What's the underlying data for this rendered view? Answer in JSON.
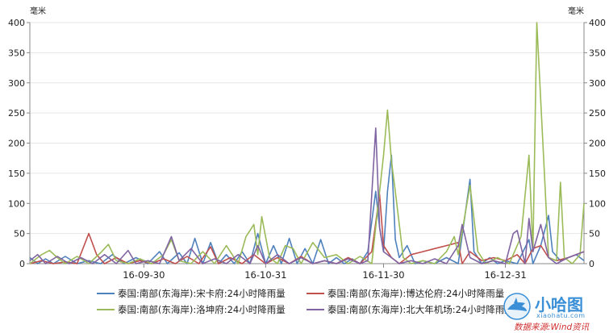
{
  "chart_data": {
    "type": "line",
    "y_unit_left": "毫米",
    "y_unit_right": "毫米",
    "ylim": [
      0,
      400
    ],
    "yticks": [
      0,
      50,
      100,
      150,
      200,
      250,
      300,
      350,
      400
    ],
    "xlim": [
      "2016-09-01",
      "2017-01-20"
    ],
    "xticks": [
      {
        "date": "2016-09-30",
        "label": "16-09-30"
      },
      {
        "date": "2016-10-31",
        "label": "16-10-31"
      },
      {
        "date": "2016-11-30",
        "label": "16-11-30"
      },
      {
        "date": "2016-12-31",
        "label": "16-12-31"
      }
    ],
    "grid": "horizontal",
    "legend_position": "bottom",
    "series": [
      {
        "name": "泰国:南部(东海岸):宋卡府:24小时降雨量",
        "color": "#4f81bd",
        "points": [
          [
            "2016-09-01",
            10
          ],
          [
            "2016-09-03",
            0
          ],
          [
            "2016-09-05",
            8
          ],
          [
            "2016-09-07",
            0
          ],
          [
            "2016-09-10",
            12
          ],
          [
            "2016-09-13",
            0
          ],
          [
            "2016-09-16",
            5
          ],
          [
            "2016-09-19",
            0
          ],
          [
            "2016-09-22",
            15
          ],
          [
            "2016-09-25",
            0
          ],
          [
            "2016-09-28",
            10
          ],
          [
            "2016-10-01",
            0
          ],
          [
            "2016-10-04",
            20
          ],
          [
            "2016-10-06",
            0
          ],
          [
            "2016-10-09",
            18
          ],
          [
            "2016-10-11",
            0
          ],
          [
            "2016-10-13",
            42
          ],
          [
            "2016-10-15",
            0
          ],
          [
            "2016-10-17",
            35
          ],
          [
            "2016-10-19",
            0
          ],
          [
            "2016-10-21",
            15
          ],
          [
            "2016-10-23",
            0
          ],
          [
            "2016-10-25",
            20
          ],
          [
            "2016-10-27",
            0
          ],
          [
            "2016-10-29",
            50
          ],
          [
            "2016-10-31",
            0
          ],
          [
            "2016-11-02",
            30
          ],
          [
            "2016-11-04",
            0
          ],
          [
            "2016-11-06",
            42
          ],
          [
            "2016-11-08",
            0
          ],
          [
            "2016-11-10",
            25
          ],
          [
            "2016-11-12",
            0
          ],
          [
            "2016-11-14",
            40
          ],
          [
            "2016-11-16",
            0
          ],
          [
            "2016-11-18",
            10
          ],
          [
            "2016-11-20",
            0
          ],
          [
            "2016-11-22",
            8
          ],
          [
            "2016-11-24",
            0
          ],
          [
            "2016-11-26",
            20
          ],
          [
            "2016-11-28",
            120
          ],
          [
            "2016-11-29",
            60
          ],
          [
            "2016-11-30",
            20
          ],
          [
            "2016-12-01",
            120
          ],
          [
            "2016-12-02",
            180
          ],
          [
            "2016-12-03",
            40
          ],
          [
            "2016-12-04",
            10
          ],
          [
            "2016-12-06",
            30
          ],
          [
            "2016-12-08",
            0
          ],
          [
            "2016-12-10",
            5
          ],
          [
            "2016-12-13",
            0
          ],
          [
            "2016-12-16",
            10
          ],
          [
            "2016-12-19",
            0
          ],
          [
            "2016-12-22",
            140
          ],
          [
            "2016-12-23",
            20
          ],
          [
            "2016-12-25",
            0
          ],
          [
            "2016-12-27",
            10
          ],
          [
            "2016-12-29",
            0
          ],
          [
            "2016-12-31",
            5
          ],
          [
            "2017-01-03",
            0
          ],
          [
            "2017-01-06",
            40
          ],
          [
            "2017-01-07",
            0
          ],
          [
            "2017-01-09",
            30
          ],
          [
            "2017-01-11",
            80
          ],
          [
            "2017-01-12",
            20
          ],
          [
            "2017-01-14",
            5
          ],
          [
            "2017-01-16",
            10
          ],
          [
            "2017-01-18",
            15
          ],
          [
            "2017-01-20",
            5
          ]
        ]
      },
      {
        "name": "泰国:南部(东海岸):博达伦府:24小时降雨量",
        "color": "#c0504d",
        "points": [
          [
            "2016-09-01",
            0
          ],
          [
            "2016-09-04",
            5
          ],
          [
            "2016-09-07",
            0
          ],
          [
            "2016-09-10",
            3
          ],
          [
            "2016-09-13",
            0
          ],
          [
            "2016-09-16",
            50
          ],
          [
            "2016-09-18",
            15
          ],
          [
            "2016-09-20",
            0
          ],
          [
            "2016-09-23",
            10
          ],
          [
            "2016-09-26",
            0
          ],
          [
            "2016-09-29",
            5
          ],
          [
            "2016-10-02",
            0
          ],
          [
            "2016-10-05",
            8
          ],
          [
            "2016-10-08",
            0
          ],
          [
            "2016-10-11",
            12
          ],
          [
            "2016-10-14",
            0
          ],
          [
            "2016-10-17",
            28
          ],
          [
            "2016-10-19",
            0
          ],
          [
            "2016-10-22",
            10
          ],
          [
            "2016-10-25",
            0
          ],
          [
            "2016-10-28",
            15
          ],
          [
            "2016-10-31",
            0
          ],
          [
            "2016-11-03",
            10
          ],
          [
            "2016-11-06",
            0
          ],
          [
            "2016-11-09",
            12
          ],
          [
            "2016-11-12",
            0
          ],
          [
            "2016-11-15",
            5
          ],
          [
            "2016-11-18",
            0
          ],
          [
            "2016-11-21",
            10
          ],
          [
            "2016-11-24",
            0
          ],
          [
            "2016-11-27",
            20
          ],
          [
            "2016-11-29",
            115
          ],
          [
            "2016-11-30",
            30
          ],
          [
            "2016-12-02",
            10
          ],
          [
            "2016-12-04",
            0
          ],
          [
            "2016-12-07",
            15
          ],
          [
            "2016-12-10",
            20
          ],
          [
            "2016-12-13",
            25
          ],
          [
            "2016-12-16",
            30
          ],
          [
            "2016-12-19",
            35
          ],
          [
            "2016-12-20",
            0
          ],
          [
            "2016-12-22",
            20
          ],
          [
            "2016-12-25",
            5
          ],
          [
            "2016-12-28",
            10
          ],
          [
            "2016-12-31",
            5
          ],
          [
            "2017-01-03",
            15
          ],
          [
            "2017-01-05",
            0
          ],
          [
            "2017-01-07",
            25
          ],
          [
            "2017-01-09",
            30
          ],
          [
            "2017-01-11",
            10
          ],
          [
            "2017-01-13",
            5
          ],
          [
            "2017-01-16",
            10
          ],
          [
            "2017-01-18",
            15
          ],
          [
            "2017-01-20",
            20
          ]
        ]
      },
      {
        "name": "泰国:南部(东海岸):洛坤府:24小时降雨量",
        "color": "#9bbb59",
        "points": [
          [
            "2016-09-01",
            0
          ],
          [
            "2016-09-04",
            15
          ],
          [
            "2016-09-06",
            22
          ],
          [
            "2016-09-08",
            10
          ],
          [
            "2016-09-10",
            0
          ],
          [
            "2016-09-13",
            12
          ],
          [
            "2016-09-16",
            0
          ],
          [
            "2016-09-19",
            18
          ],
          [
            "2016-09-21",
            32
          ],
          [
            "2016-09-23",
            5
          ],
          [
            "2016-09-26",
            0
          ],
          [
            "2016-09-29",
            8
          ],
          [
            "2016-10-02",
            0
          ],
          [
            "2016-10-05",
            15
          ],
          [
            "2016-10-07",
            40
          ],
          [
            "2016-10-09",
            5
          ],
          [
            "2016-10-12",
            0
          ],
          [
            "2016-10-15",
            20
          ],
          [
            "2016-10-18",
            0
          ],
          [
            "2016-10-21",
            30
          ],
          [
            "2016-10-24",
            0
          ],
          [
            "2016-10-26",
            45
          ],
          [
            "2016-10-28",
            65
          ],
          [
            "2016-10-29",
            15
          ],
          [
            "2016-10-30",
            78
          ],
          [
            "2016-11-01",
            10
          ],
          [
            "2016-11-03",
            0
          ],
          [
            "2016-11-05",
            30
          ],
          [
            "2016-11-07",
            25
          ],
          [
            "2016-11-09",
            0
          ],
          [
            "2016-11-12",
            35
          ],
          [
            "2016-11-15",
            10
          ],
          [
            "2016-11-18",
            15
          ],
          [
            "2016-11-21",
            0
          ],
          [
            "2016-11-24",
            12
          ],
          [
            "2016-11-27",
            0
          ],
          [
            "2016-11-30",
            180
          ],
          [
            "2016-12-01",
            255
          ],
          [
            "2016-12-02",
            170
          ],
          [
            "2016-12-03",
            120
          ],
          [
            "2016-12-05",
            10
          ],
          [
            "2016-12-07",
            0
          ],
          [
            "2016-12-10",
            5
          ],
          [
            "2016-12-13",
            0
          ],
          [
            "2016-12-16",
            20
          ],
          [
            "2016-12-18",
            45
          ],
          [
            "2016-12-19",
            15
          ],
          [
            "2016-12-22",
            130
          ],
          [
            "2016-12-24",
            20
          ],
          [
            "2016-12-26",
            0
          ],
          [
            "2016-12-29",
            10
          ],
          [
            "2017-01-01",
            0
          ],
          [
            "2017-01-04",
            45
          ],
          [
            "2017-01-06",
            180
          ],
          [
            "2017-01-07",
            20
          ],
          [
            "2017-01-08",
            400
          ],
          [
            "2017-01-10",
            140
          ],
          [
            "2017-01-11",
            10
          ],
          [
            "2017-01-13",
            5
          ],
          [
            "2017-01-14",
            135
          ],
          [
            "2017-01-15",
            10
          ],
          [
            "2017-01-17",
            0
          ],
          [
            "2017-01-19",
            15
          ],
          [
            "2017-01-20",
            100
          ]
        ]
      },
      {
        "name": "泰国:南部(东海岸):北大年机场:24小时降雨量",
        "color": "#8064a2",
        "points": [
          [
            "2016-09-01",
            5
          ],
          [
            "2016-09-03",
            15
          ],
          [
            "2016-09-05",
            0
          ],
          [
            "2016-09-08",
            12
          ],
          [
            "2016-09-11",
            0
          ],
          [
            "2016-09-14",
            10
          ],
          [
            "2016-09-17",
            0
          ],
          [
            "2016-09-20",
            15
          ],
          [
            "2016-09-23",
            0
          ],
          [
            "2016-09-26",
            22
          ],
          [
            "2016-09-28",
            0
          ],
          [
            "2016-10-01",
            5
          ],
          [
            "2016-10-04",
            0
          ],
          [
            "2016-10-07",
            45
          ],
          [
            "2016-10-09",
            5
          ],
          [
            "2016-10-12",
            25
          ],
          [
            "2016-10-15",
            0
          ],
          [
            "2016-10-18",
            8
          ],
          [
            "2016-10-21",
            0
          ],
          [
            "2016-10-24",
            15
          ],
          [
            "2016-10-27",
            0
          ],
          [
            "2016-10-29",
            30
          ],
          [
            "2016-10-31",
            0
          ],
          [
            "2016-11-03",
            15
          ],
          [
            "2016-11-06",
            0
          ],
          [
            "2016-11-09",
            10
          ],
          [
            "2016-11-12",
            0
          ],
          [
            "2016-11-15",
            5
          ],
          [
            "2016-11-18",
            0
          ],
          [
            "2016-11-21",
            8
          ],
          [
            "2016-11-24",
            0
          ],
          [
            "2016-11-26",
            5
          ],
          [
            "2016-11-28",
            225
          ],
          [
            "2016-11-29",
            60
          ],
          [
            "2016-11-30",
            20
          ],
          [
            "2016-12-02",
            10
          ],
          [
            "2016-12-04",
            0
          ],
          [
            "2016-12-07",
            5
          ],
          [
            "2016-12-10",
            0
          ],
          [
            "2016-12-13",
            8
          ],
          [
            "2016-12-16",
            0
          ],
          [
            "2016-12-19",
            30
          ],
          [
            "2016-12-20",
            65
          ],
          [
            "2016-12-22",
            10
          ],
          [
            "2016-12-25",
            0
          ],
          [
            "2016-12-28",
            5
          ],
          [
            "2016-12-31",
            0
          ],
          [
            "2017-01-02",
            50
          ],
          [
            "2017-01-03",
            55
          ],
          [
            "2017-01-05",
            0
          ],
          [
            "2017-01-06",
            75
          ],
          [
            "2017-01-07",
            20
          ],
          [
            "2017-01-09",
            65
          ],
          [
            "2017-01-11",
            10
          ],
          [
            "2017-01-13",
            0
          ],
          [
            "2017-01-16",
            10
          ],
          [
            "2017-01-18",
            15
          ],
          [
            "2017-01-20",
            20
          ]
        ]
      }
    ]
  },
  "watermark": {
    "site_name": "小哈图",
    "site_domain": "xiaohatu.com",
    "source": "数据来源:Wind资讯",
    "logo": "shark-logo"
  }
}
